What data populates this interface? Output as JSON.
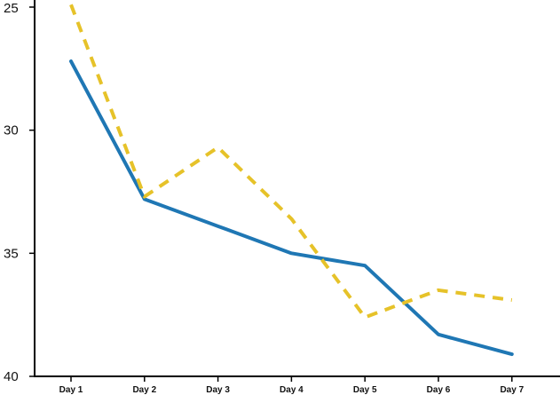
{
  "chart_data": {
    "type": "line",
    "title": "",
    "xlabel": "",
    "ylabel": "",
    "categories": [
      "Day 1",
      "Day 2",
      "Day 3",
      "Day 4",
      "Day 5",
      "Day 6",
      "Day 7"
    ],
    "y_inverted": true,
    "ylim": [
      25,
      40
    ],
    "y_ticks": [
      "25",
      "30",
      "35",
      "40"
    ],
    "grid": false,
    "legend": "none",
    "series": [
      {
        "color": "#1f77b4",
        "style": "solid",
        "values": [
          27.2,
          32.8,
          33.9,
          35.0,
          35.5,
          38.3,
          39.1
        ]
      },
      {
        "color": "#e6c229",
        "style": "dashed",
        "values": [
          24.9,
          32.7,
          30.7,
          33.6,
          37.6,
          36.5,
          36.9
        ]
      }
    ]
  }
}
